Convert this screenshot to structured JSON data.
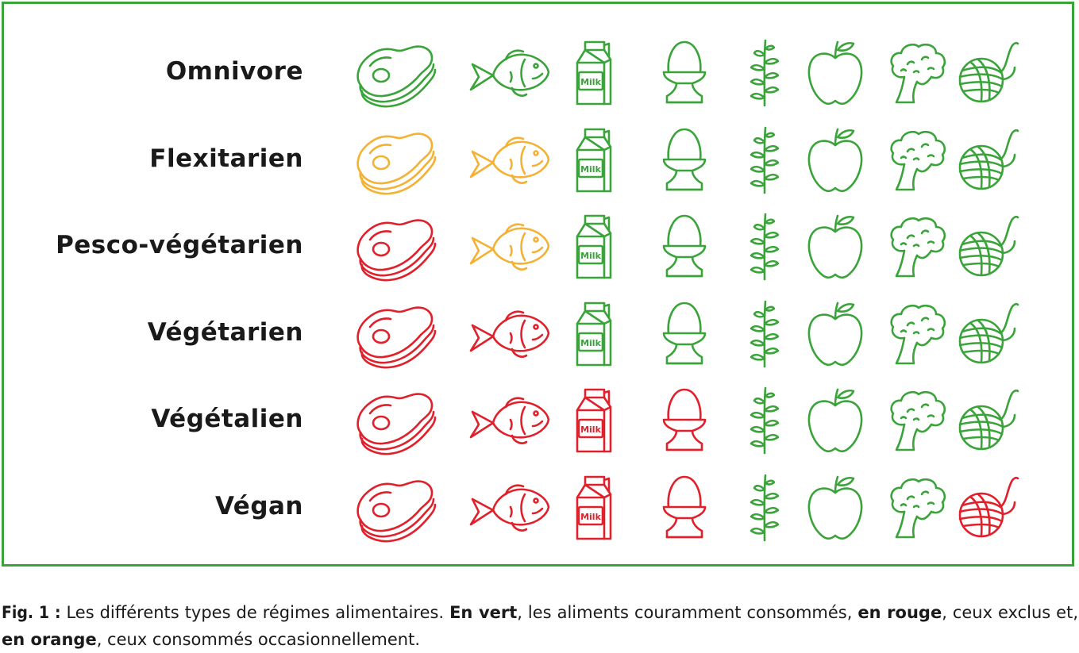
{
  "colors": {
    "vert": "#3aa33a",
    "orange": "#f4b133",
    "rouge": "#e0202a",
    "frame": "#3aa33a"
  },
  "foods": [
    {
      "key": "meat",
      "icon": "steak-icon"
    },
    {
      "key": "fish",
      "icon": "fish-icon"
    },
    {
      "key": "milk",
      "icon": "milk-carton-icon",
      "text": "Milk"
    },
    {
      "key": "egg",
      "icon": "egg-cup-icon"
    },
    {
      "key": "herb",
      "icon": "herb-sprig-icon"
    },
    {
      "key": "apple",
      "icon": "apple-icon"
    },
    {
      "key": "broccoli",
      "icon": "broccoli-icon"
    },
    {
      "key": "wool",
      "icon": "yarn-ball-icon"
    }
  ],
  "rows": [
    {
      "label": "Omnivore",
      "colors": [
        "vert",
        "vert",
        "vert",
        "vert",
        "vert",
        "vert",
        "vert",
        "vert"
      ]
    },
    {
      "label": "Flexitarien",
      "colors": [
        "orange",
        "orange",
        "vert",
        "vert",
        "vert",
        "vert",
        "vert",
        "vert"
      ]
    },
    {
      "label": "Pesco-végétarien",
      "colors": [
        "rouge",
        "orange",
        "vert",
        "vert",
        "vert",
        "vert",
        "vert",
        "vert"
      ]
    },
    {
      "label": "Végétarien",
      "colors": [
        "rouge",
        "rouge",
        "vert",
        "vert",
        "vert",
        "vert",
        "vert",
        "vert"
      ]
    },
    {
      "label": "Végétalien",
      "colors": [
        "rouge",
        "rouge",
        "rouge",
        "rouge",
        "vert",
        "vert",
        "vert",
        "vert"
      ]
    },
    {
      "label": "Végan",
      "colors": [
        "rouge",
        "rouge",
        "rouge",
        "rouge",
        "vert",
        "vert",
        "vert",
        "rouge"
      ]
    }
  ],
  "caption": {
    "fig": "Fig. 1 :",
    "text1": " Les différents types de régimes alimentaires. ",
    "green": "En vert",
    "text2": ", les aliments couramment consommés, ",
    "red": "en rouge",
    "text3": ", ceux exclus et, ",
    "orange": "en orange",
    "text4": ", ceux consommés occasionnellement."
  }
}
